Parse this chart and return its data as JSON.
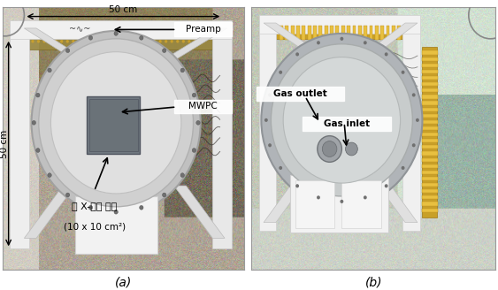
{
  "figsize": [
    5.63,
    3.28
  ],
  "dpi": 100,
  "background_color": "#ffffff",
  "border_color": "#888888",
  "panel_a": {
    "bg_color": [
      0.68,
      0.64,
      0.58
    ],
    "wall_color": [
      0.82,
      0.8,
      0.76
    ],
    "frame_color": [
      0.94,
      0.94,
      0.94
    ],
    "pcb_color": [
      0.55,
      0.5,
      0.35
    ],
    "flange_outer": [
      0.78,
      0.78,
      0.78
    ],
    "flange_inner": [
      0.88,
      0.88,
      0.88
    ],
    "square_color": [
      0.55,
      0.55,
      0.58
    ],
    "pedestal_color": [
      0.95,
      0.95,
      0.95
    ],
    "cable_color": [
      0.2,
      0.18,
      0.15
    ]
  },
  "panel_b": {
    "bg_color": [
      0.76,
      0.78,
      0.72
    ],
    "wall_color": [
      0.88,
      0.9,
      0.86
    ],
    "frame_color": [
      0.94,
      0.94,
      0.94
    ],
    "pcb_color": [
      0.65,
      0.55,
      0.2
    ],
    "flange_color": [
      0.72,
      0.72,
      0.72
    ],
    "pedestal_color": [
      0.93,
      0.93,
      0.93
    ],
    "cable_color": [
      0.22,
      0.2,
      0.18
    ]
  },
  "label_fontsize": 10,
  "annot_fontsize": 7.5,
  "panel_label_fontsize": 10
}
